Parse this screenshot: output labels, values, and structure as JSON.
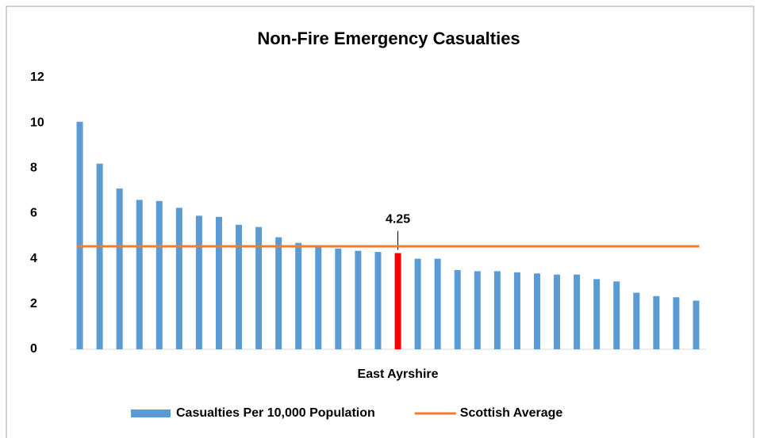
{
  "chart_data": {
    "type": "bar",
    "title": "Non-Fire Emergency Casualties",
    "categories": [
      null,
      null,
      null,
      null,
      null,
      null,
      null,
      null,
      null,
      null,
      null,
      null,
      null,
      null,
      null,
      null,
      "East Ayrshire",
      null,
      null,
      null,
      null,
      null,
      null,
      null,
      null,
      null,
      null,
      null,
      null,
      null,
      null,
      null
    ],
    "series": [
      {
        "name": "Casualties Per 10,000 Population",
        "color": "#5b9bd5",
        "colors": [
          "#5b9bd5",
          "#5b9bd5",
          "#5b9bd5",
          "#5b9bd5",
          "#5b9bd5",
          "#5b9bd5",
          "#5b9bd5",
          "#5b9bd5",
          "#5b9bd5",
          "#5b9bd5",
          "#5b9bd5",
          "#5b9bd5",
          "#5b9bd5",
          "#5b9bd5",
          "#5b9bd5",
          "#5b9bd5",
          "#ff0000",
          "#5b9bd5",
          "#5b9bd5",
          "#5b9bd5",
          "#5b9bd5",
          "#5b9bd5",
          "#5b9bd5",
          "#5b9bd5",
          "#5b9bd5",
          "#5b9bd5",
          "#5b9bd5",
          "#5b9bd5",
          "#5b9bd5",
          "#5b9bd5",
          "#5b9bd5",
          "#5b9bd5"
        ],
        "values": [
          10.05,
          8.2,
          7.1,
          6.6,
          6.55,
          6.25,
          5.9,
          5.85,
          5.5,
          5.4,
          4.95,
          4.7,
          4.55,
          4.45,
          4.35,
          4.3,
          4.25,
          4.0,
          4.0,
          3.5,
          3.45,
          3.45,
          3.4,
          3.35,
          3.3,
          3.3,
          3.1,
          3.0,
          2.5,
          2.35,
          2.3,
          2.15
        ]
      },
      {
        "name": "Scottish Average",
        "type": "line",
        "color": "#ed7d31",
        "value": 4.55
      }
    ],
    "ylim": [
      0,
      12
    ],
    "yticks": [
      0,
      2,
      4,
      6,
      8,
      10,
      12
    ],
    "grid": false,
    "legend": "bottom"
  }
}
